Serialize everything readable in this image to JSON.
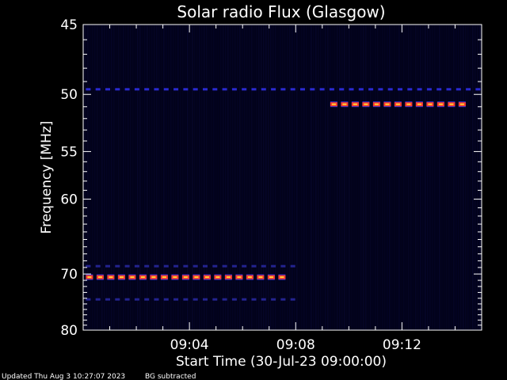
{
  "chart_data": {
    "type": "heatmap",
    "title": "Solar radio Flux (Glasgow)",
    "xlabel": "Start Time (30-Jul-23 09:00:00)",
    "ylabel": "Frequency [MHz]",
    "x_unit": "minutes after 09:00:00",
    "xlim": [
      0,
      15
    ],
    "ylim": [
      45,
      80
    ],
    "y_scale": "reciprocal",
    "x_ticks": [
      {
        "value": 4,
        "label": "09:04"
      },
      {
        "value": 8,
        "label": "09:08"
      },
      {
        "value": 12,
        "label": "09:12"
      }
    ],
    "y_ticks": [
      {
        "value": 45,
        "label": "45"
      },
      {
        "value": 50,
        "label": "50"
      },
      {
        "value": 55,
        "label": "55"
      },
      {
        "value": 60,
        "label": "60"
      },
      {
        "value": 70,
        "label": "70"
      },
      {
        "value": 80,
        "label": "80"
      }
    ],
    "background_color": "#02021a",
    "signal_bands": [
      {
        "frequency": 70.5,
        "x_start": 0.1,
        "x_end": 8.0,
        "intensity": "high",
        "color": "#ff3b2a"
      },
      {
        "frequency": 50.8,
        "x_start": 9.3,
        "x_end": 14.5,
        "intensity": "high",
        "color": "#ff3b2a"
      },
      {
        "frequency": 49.6,
        "x_start": 0.1,
        "x_end": 15.0,
        "intensity": "low",
        "color": "#2a2ad0"
      },
      {
        "frequency": 68.8,
        "x_start": 0.1,
        "x_end": 8.0,
        "intensity": "low",
        "color": "#23238f"
      },
      {
        "frequency": 74.2,
        "x_start": 0.1,
        "x_end": 8.0,
        "intensity": "low",
        "color": "#23238f"
      }
    ]
  },
  "footer": {
    "updated": "Updated Thu Aug  3 10:27:07 2023",
    "note": "BG subtracted"
  }
}
